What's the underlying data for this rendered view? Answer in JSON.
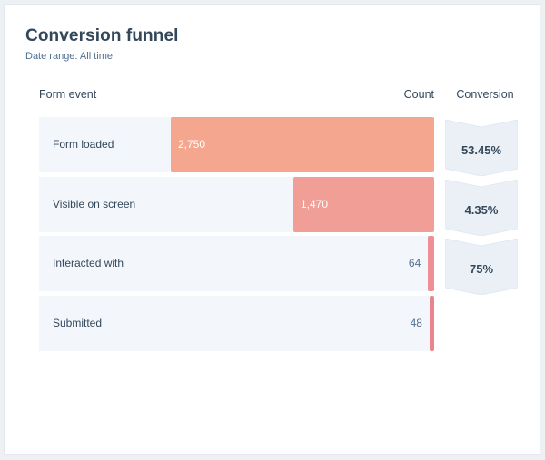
{
  "header": {
    "title": "Conversion funnel",
    "subtitle": "Date range: All time"
  },
  "columns": {
    "event": "Form event",
    "count": "Count",
    "conversion": "Conversion"
  },
  "colors": {
    "bar_1": "#f5a68f",
    "bar_2": "#f09e96",
    "bar_3": "#ee8e95",
    "bar_4": "#ea8590",
    "row_bg": "#f3f6fa",
    "chevron_bg": "#eaf0f6"
  },
  "chart_data": {
    "type": "bar",
    "orientation": "horizontal",
    "categories": [
      "Form loaded",
      "Visible on screen",
      "Interacted with",
      "Submitted"
    ],
    "values": [
      2750,
      1470,
      64,
      48
    ],
    "value_labels": [
      "2,750",
      "1,470",
      "64",
      "48"
    ],
    "conversion_rates": [
      "53.45%",
      "4.35%",
      "75%"
    ],
    "xlim": [
      0,
      2750
    ]
  }
}
